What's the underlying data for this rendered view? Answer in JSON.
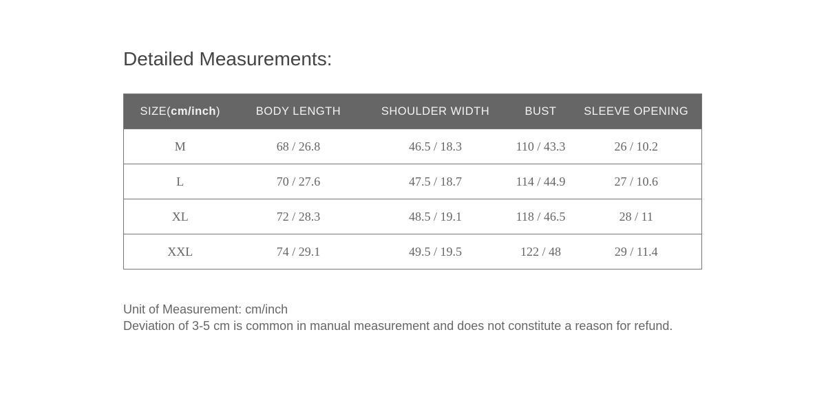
{
  "title": "Detailed Measurements:",
  "table": {
    "size_header": "SIZE(",
    "size_unit": "cm/inch",
    "size_close": ")",
    "headers": [
      "BODY LENGTH",
      "SHOULDER WIDTH",
      "BUST",
      "SLEEVE OPENING"
    ],
    "rows": [
      [
        "M",
        "68 / 26.8",
        "46.5 / 18.3",
        "110 / 43.3",
        "26 / 10.2"
      ],
      [
        "L",
        "70 / 27.6",
        "47.5 / 18.7",
        "114 / 44.9",
        "27 / 10.6"
      ],
      [
        "XL",
        "72 / 28.3",
        "48.5 / 19.1",
        "118 / 46.5",
        "28 / 11"
      ],
      [
        "XXL",
        "74 / 29.1",
        "49.5 / 19.5",
        "122 / 48",
        "29 / 11.4"
      ]
    ]
  },
  "notes": {
    "unit": "Unit of Measurement: cm/inch",
    "deviation": "Deviation of 3-5 cm is common in manual measurement and does not constitute a reason for refund."
  }
}
